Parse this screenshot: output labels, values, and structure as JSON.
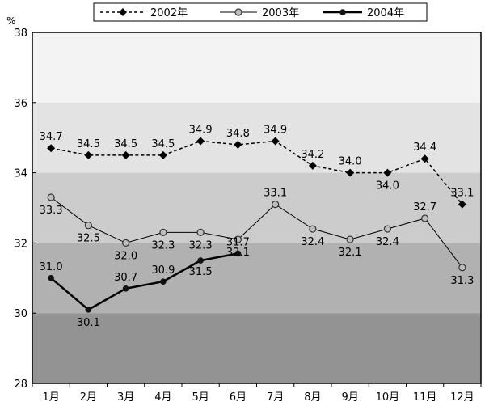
{
  "chart_data": {
    "type": "line",
    "y_unit": "%",
    "categories": [
      "1月",
      "2月",
      "3月",
      "4月",
      "5月",
      "6月",
      "7月",
      "8月",
      "9月",
      "10月",
      "11月",
      "12月"
    ],
    "ylim": [
      28,
      38
    ],
    "yticks": [
      28,
      30,
      32,
      34,
      36,
      38
    ],
    "grid": false,
    "background_bands": [
      {
        "from": 36,
        "to": 38,
        "color": "#f3f3f3"
      },
      {
        "from": 34,
        "to": 36,
        "color": "#e3e3e3"
      },
      {
        "from": 32,
        "to": 34,
        "color": "#cccccc"
      },
      {
        "from": 30,
        "to": 32,
        "color": "#b1b1b1"
      },
      {
        "from": 28,
        "to": 30,
        "color": "#939393"
      }
    ],
    "legend_position": "top",
    "series": [
      {
        "name": "2002年",
        "style": "dashed",
        "marker": "diamond",
        "values": [
          34.7,
          34.5,
          34.5,
          34.5,
          34.9,
          34.8,
          34.9,
          34.2,
          34.0,
          34.0,
          34.4,
          33.1
        ]
      },
      {
        "name": "2003年",
        "style": "solid-thin",
        "marker": "hollow-circle",
        "values": [
          33.3,
          32.5,
          32.0,
          32.3,
          32.3,
          32.1,
          33.1,
          32.4,
          32.1,
          32.4,
          32.7,
          31.3
        ]
      },
      {
        "name": "2004年",
        "style": "solid-thick",
        "marker": "filled-circle",
        "values": [
          31.0,
          30.1,
          30.7,
          30.9,
          31.5,
          31.7,
          null,
          null,
          null,
          null,
          null,
          null
        ]
      }
    ]
  }
}
